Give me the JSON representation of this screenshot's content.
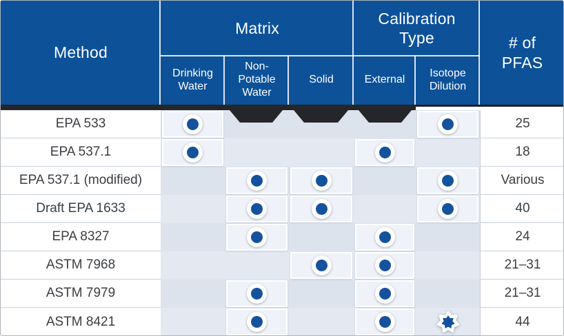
{
  "header": {
    "method": "Method",
    "matrix_group": "Matrix",
    "calibration_group": "Calibration\nType",
    "sub_drinking": "Drinking\nWater",
    "sub_non_potable": "Non-\nPotable\nWater",
    "sub_solid": "Solid",
    "sub_external": "External",
    "sub_isotope": "Isotope\nDilution",
    "pfas": "# of\nPFAS"
  },
  "icons": {
    "circle": "filled-circle-marker",
    "star": "seven-point-star-badge-marker"
  },
  "colors": {
    "header_blue": "#0d5199",
    "marker_blue": "#14529d",
    "shadow_black": "#25262a",
    "empty_cell": "#dde3ed",
    "highlight_panel": "#eff2f8",
    "body_text": "#3b3e42"
  },
  "chart_data": {
    "type": "table",
    "title": "PFAS analytical methods: matrix, calibration type and number of PFAS",
    "columns": [
      "Method",
      "Drinking Water",
      "Non-Potable Water",
      "Solid",
      "External",
      "Isotope Dilution",
      "# of PFAS"
    ],
    "column_groups": [
      {
        "label": "Matrix",
        "span": [
          "Drinking Water",
          "Non-Potable Water",
          "Solid"
        ]
      },
      {
        "label": "Calibration Type",
        "span": [
          "External",
          "Isotope Dilution"
        ]
      }
    ],
    "marker_legend": {
      "circle": "applies",
      "star": "applies (special/footnoted)"
    },
    "rows": [
      {
        "method": "EPA 533",
        "drinking_water": "circle",
        "non_potable_water": null,
        "solid": null,
        "external": null,
        "isotope_dilution": "circle",
        "pfas": "25"
      },
      {
        "method": "EPA 537.1",
        "drinking_water": "circle",
        "non_potable_water": null,
        "solid": null,
        "external": "circle",
        "isotope_dilution": null,
        "pfas": "18"
      },
      {
        "method": "EPA 537.1 (modified)",
        "drinking_water": null,
        "non_potable_water": "circle",
        "solid": "circle",
        "external": null,
        "isotope_dilution": "circle",
        "pfas": "Various"
      },
      {
        "method": "Draft EPA 1633",
        "drinking_water": null,
        "non_potable_water": "circle",
        "solid": "circle",
        "external": null,
        "isotope_dilution": "circle",
        "pfas": "40"
      },
      {
        "method": "EPA 8327",
        "drinking_water": null,
        "non_potable_water": "circle",
        "solid": null,
        "external": "circle",
        "isotope_dilution": null,
        "pfas": "24"
      },
      {
        "method": "ASTM 7968",
        "drinking_water": null,
        "non_potable_water": null,
        "solid": "circle",
        "external": "circle",
        "isotope_dilution": null,
        "pfas": "21–31"
      },
      {
        "method": "ASTM 7979",
        "drinking_water": null,
        "non_potable_water": "circle",
        "solid": null,
        "external": "circle",
        "isotope_dilution": null,
        "pfas": "21–31"
      },
      {
        "method": "ASTM 8421",
        "drinking_water": null,
        "non_potable_water": "circle",
        "solid": null,
        "external": "circle",
        "isotope_dilution": "star",
        "pfas": "44"
      }
    ]
  }
}
